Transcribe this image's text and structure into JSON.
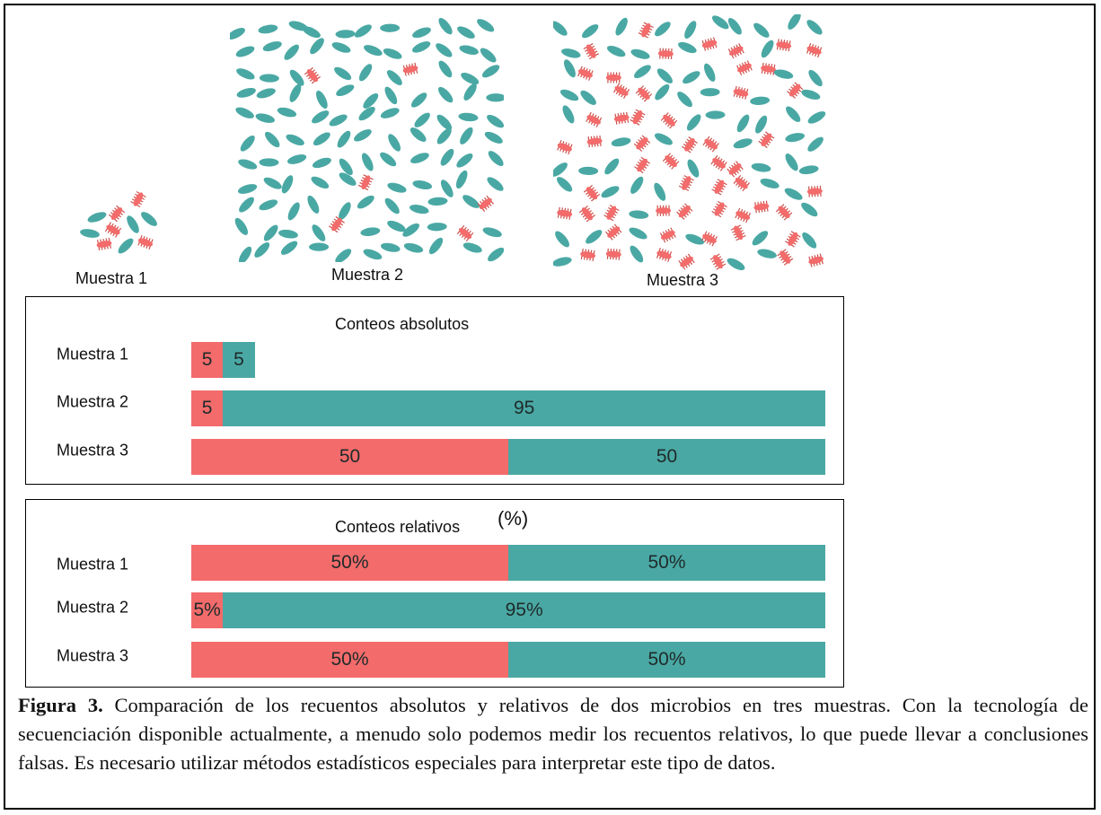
{
  "colors": {
    "microbe_a": "#f36b6b",
    "microbe_b": "#4aa8a4",
    "microbe_a_legs": "#c9504a"
  },
  "samples": [
    {
      "label": "Muestra 1"
    },
    {
      "label": "Muestra 2"
    },
    {
      "label": "Muestra 3"
    }
  ],
  "chart_data": [
    {
      "type": "bar",
      "orientation": "horizontal",
      "stacked": true,
      "title": "Conteos absolutos",
      "categories": [
        "Muestra 1",
        "Muestra 2",
        "Muestra 3"
      ],
      "series": [
        {
          "values": [
            5,
            5,
            50
          ],
          "labels": [
            "5",
            "5",
            "50"
          ],
          "color": "#f36b6b"
        },
        {
          "values": [
            5,
            95,
            50
          ],
          "labels": [
            "5",
            "95",
            "50"
          ],
          "color": "#4aa8a4"
        }
      ],
      "xlim": [
        0,
        100
      ]
    },
    {
      "type": "bar",
      "orientation": "horizontal",
      "stacked": true,
      "title": "Conteos relativos",
      "unit_note": "(%)",
      "categories": [
        "Muestra 1",
        "Muestra 2",
        "Muestra 3"
      ],
      "series": [
        {
          "values": [
            50,
            5,
            50
          ],
          "labels": [
            "50%",
            "5%",
            "50%"
          ],
          "color": "#f36b6b"
        },
        {
          "values": [
            50,
            95,
            50
          ],
          "labels": [
            "50%",
            "95%",
            "50%"
          ],
          "color": "#4aa8a4"
        }
      ],
      "xlim": [
        0,
        100
      ]
    }
  ],
  "caption": {
    "label": "Figura 3.",
    "text": " Comparación de los recuentos absolutos y relativos de dos microbios en tres muestras. Con la tecnología de secuenciación disponible actualmente, a menudo solo podemos medir los recuentos relativos, lo que puede llevar a conclusiones falsas. Es necesario utilizar métodos estadísticos especiales para interpretar este tipo de datos."
  }
}
